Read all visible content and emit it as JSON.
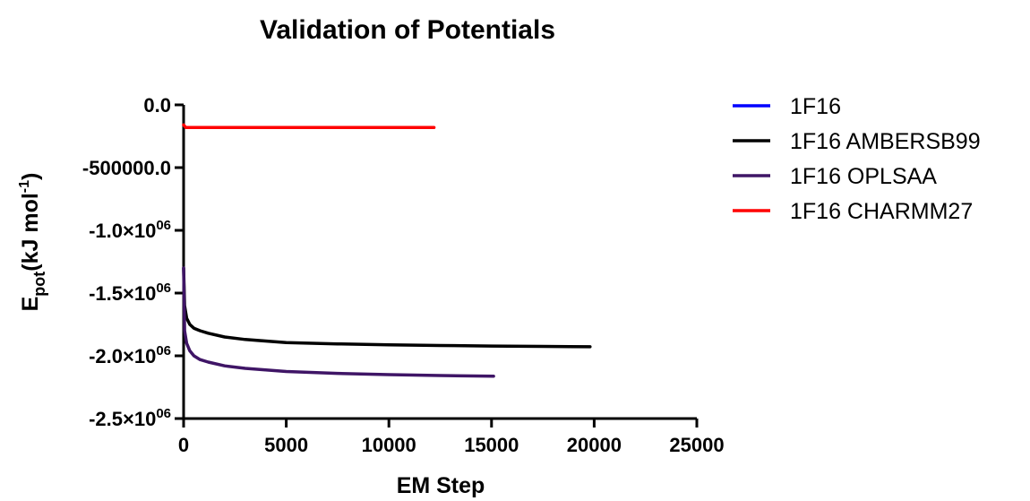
{
  "chart_data": {
    "type": "line",
    "title": "Validation of Potentials",
    "xlabel": "EM Step",
    "ylabel": {
      "main": "E",
      "sub": "pot",
      "paren": "(kJ mol",
      "sup": "-1",
      "close": ")"
    },
    "xlim": [
      0,
      25000
    ],
    "ylim": [
      -2500000,
      0
    ],
    "x_ticks": [
      {
        "value": 0,
        "label": "0"
      },
      {
        "value": 5000,
        "label": "5000"
      },
      {
        "value": 10000,
        "label": "10000"
      },
      {
        "value": 15000,
        "label": "15000"
      },
      {
        "value": 20000,
        "label": "20000"
      },
      {
        "value": 25000,
        "label": "25000"
      }
    ],
    "y_ticks": [
      {
        "value": 0,
        "mantissa": "0.0",
        "exp": ""
      },
      {
        "value": -500000,
        "mantissa": "-500000.0",
        "exp": ""
      },
      {
        "value": -1000000,
        "mantissa": "-1.0×10",
        "exp": "06"
      },
      {
        "value": -1500000,
        "mantissa": "-1.5×10",
        "exp": "06"
      },
      {
        "value": -2000000,
        "mantissa": "-2.0×10",
        "exp": "06"
      },
      {
        "value": -2500000,
        "mantissa": "-2.5×10",
        "exp": "06"
      }
    ],
    "legend_position": "right",
    "grid": false,
    "series": [
      {
        "name": "1F16",
        "color": "#0000ff",
        "x": [],
        "y": []
      },
      {
        "name": "1F16 AMBERSB99",
        "color": "#000000",
        "x": [
          0,
          50,
          150,
          300,
          500,
          800,
          1200,
          2000,
          3000,
          5000,
          7500,
          10000,
          12500,
          15000,
          17500,
          19800
        ],
        "y": [
          -1300000,
          -1600000,
          -1700000,
          -1750000,
          -1780000,
          -1800000,
          -1820000,
          -1850000,
          -1870000,
          -1895000,
          -1905000,
          -1912000,
          -1918000,
          -1922000,
          -1925000,
          -1928000
        ]
      },
      {
        "name": "1F16 OPLSAA",
        "color": "#3f1566",
        "x": [
          0,
          50,
          150,
          300,
          500,
          800,
          1200,
          2000,
          3000,
          5000,
          7500,
          10000,
          12500,
          15100
        ],
        "y": [
          -1300000,
          -1800000,
          -1900000,
          -1960000,
          -2000000,
          -2030000,
          -2050000,
          -2080000,
          -2100000,
          -2125000,
          -2140000,
          -2150000,
          -2157000,
          -2162000
        ]
      },
      {
        "name": "1F16 CHARMM27",
        "color": "#ff0000",
        "x": [
          0,
          100,
          12200
        ],
        "y": [
          -160000,
          -180000,
          -180000
        ]
      }
    ]
  }
}
